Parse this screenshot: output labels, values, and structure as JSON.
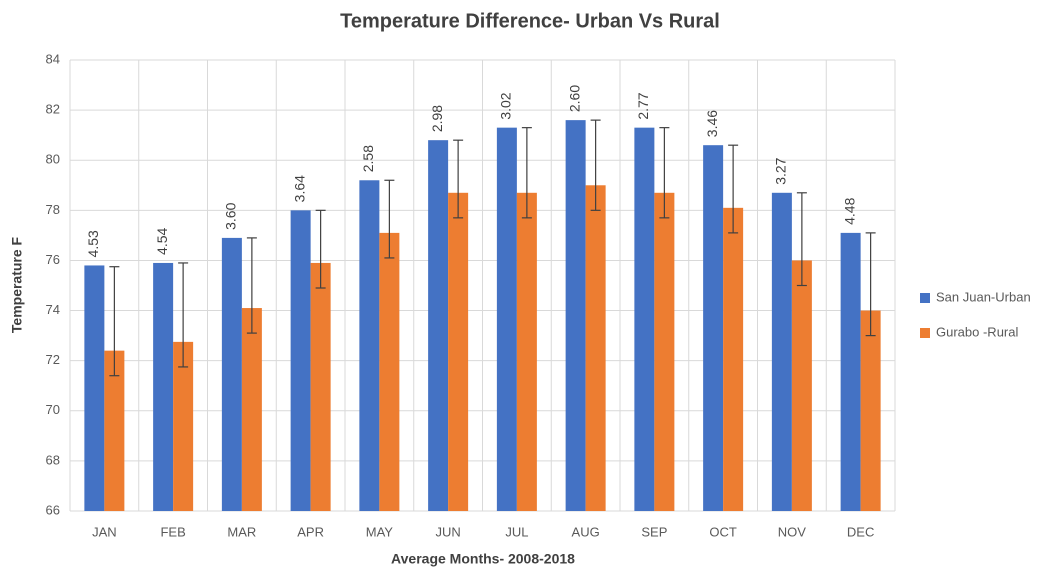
{
  "chart_data": {
    "type": "bar",
    "title": "Temperature Difference- Urban Vs Rural",
    "x_label": "Average Months- 2008-2018",
    "y_label": "Temperature F",
    "categories": [
      "JAN",
      "FEB",
      "MAR",
      "APR",
      "MAY",
      "JUN",
      "JUL",
      "AUG",
      "SEP",
      "OCT",
      "NOV",
      "DEC"
    ],
    "series": [
      {
        "name": "San Juan-Urban",
        "color": "#4472c4",
        "values": [
          75.8,
          75.9,
          76.9,
          78.0,
          79.2,
          80.8,
          81.3,
          81.6,
          81.3,
          80.6,
          78.7,
          77.1
        ]
      },
      {
        "name": "Gurabo -Rural",
        "color": "#ed7d31",
        "values": [
          72.4,
          72.75,
          74.1,
          75.9,
          77.1,
          78.7,
          78.7,
          79.0,
          78.7,
          78.1,
          76.0,
          74.0
        ],
        "errors_minus": [
          1,
          1,
          1,
          1,
          1,
          1,
          1,
          1,
          1,
          1,
          1,
          1
        ],
        "errors_plus": [
          3.35,
          3.15,
          2.8,
          2.1,
          2.1,
          2.1,
          2.6,
          2.6,
          2.6,
          2.5,
          2.7,
          3.1
        ]
      }
    ],
    "differences": [
      "4.53",
      "4.54",
      "3.60",
      "3.64",
      "2.58",
      "2.98",
      "3.02",
      "2.60",
      "2.77",
      "3.46",
      "3.27",
      "4.48"
    ],
    "ylim": [
      66,
      84
    ],
    "yticks": [
      66,
      68,
      70,
      72,
      74,
      76,
      78,
      80,
      82,
      84
    ],
    "grid": true,
    "legend": "right"
  }
}
